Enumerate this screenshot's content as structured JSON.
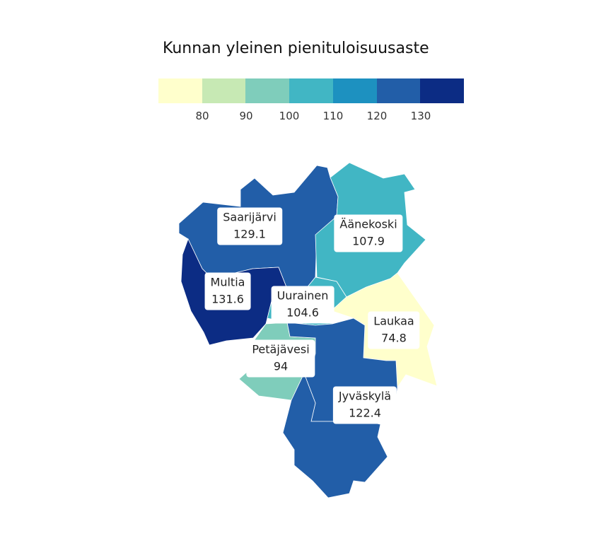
{
  "title": "Kunnan yleinen pienituloisuusaste",
  "legend": {
    "colors": [
      "#ffffcc",
      "#c7e9b4",
      "#7fcdbb",
      "#41b6c4",
      "#1d91c0",
      "#225ea8",
      "#0c2c84"
    ],
    "ticks": [
      "80",
      "90",
      "100",
      "110",
      "120",
      "130"
    ]
  },
  "municipalities": [
    {
      "name": "Saarijärvi",
      "value": "129.1",
      "color": "#225ea8"
    },
    {
      "name": "Äänekoski",
      "value": "107.9",
      "color": "#41b6c4"
    },
    {
      "name": "Multia",
      "value": "131.6",
      "color": "#0c2c84"
    },
    {
      "name": "Uurainen",
      "value": "104.6",
      "color": "#41b6c4"
    },
    {
      "name": "Laukaa",
      "value": "74.8",
      "color": "#ffffcc"
    },
    {
      "name": "Petäjävesi",
      "value": "94",
      "color": "#7fcdbb"
    },
    {
      "name": "Jyväskylä",
      "value": "122.4",
      "color": "#225ea8"
    }
  ]
}
